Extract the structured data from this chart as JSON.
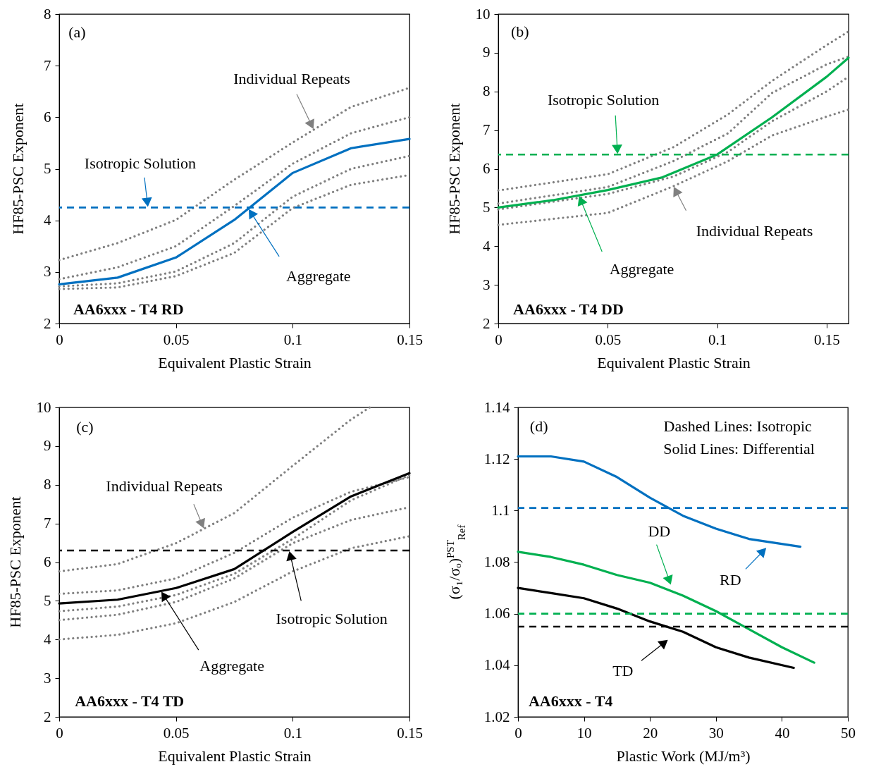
{
  "chart_data": [
    {
      "type": "line",
      "xlabel": "Equivalent Plastic Strain",
      "ylabel": "HF85-PSC Exponent",
      "x": [
        0,
        0.025,
        0.05,
        0.075,
        0.1,
        0.125,
        0.15
      ],
      "xlim": [
        0,
        0.15
      ],
      "xticks": [
        0,
        0.05,
        0.1,
        0.15
      ],
      "ylim": [
        2,
        8
      ],
      "yticks": [
        2,
        3,
        4,
        5,
        6,
        7,
        8
      ],
      "series": [
        {
          "color": "#808080",
          "line_style": "dotted",
          "values": [
            3.23,
            3.56,
            4.01,
            4.79,
            5.51,
            6.2,
            6.57
          ]
        },
        {
          "color": "#808080",
          "line_style": "dotted",
          "values": [
            2.86,
            3.09,
            3.5,
            4.28,
            5.1,
            5.69,
            6.0
          ]
        },
        {
          "color": "#808080",
          "line_style": "dotted",
          "values": [
            2.72,
            2.78,
            3.01,
            3.56,
            4.46,
            5.0,
            5.25
          ]
        },
        {
          "color": "#808080",
          "line_style": "dotted",
          "values": [
            2.67,
            2.7,
            2.92,
            3.37,
            4.24,
            4.69,
            4.88
          ]
        },
        {
          "color": "#0070c0",
          "line_style": "solid",
          "values": [
            2.76,
            2.89,
            3.28,
            4.01,
            4.92,
            5.4,
            5.58
          ]
        }
      ],
      "ref_lines": [
        {
          "axis": "y",
          "value": 4.25,
          "label": "Isotropic Solution",
          "color": "#0070c0",
          "line_style": "dashed"
        }
      ],
      "annotations": [
        "(a)",
        {
          "text": "Individual Repeats",
          "x": 0.109,
          "y": 5.76
        },
        {
          "text": "Aggregate",
          "x": 0.081,
          "y": 4.23
        },
        "AA6xxx - T4 RD"
      ]
    },
    {
      "type": "line",
      "xlabel": "Equivalent Plastic Strain",
      "ylabel": "HF85-PSC Exponent",
      "xlim": [
        0,
        0.16
      ],
      "xticks": [
        0,
        0.05,
        0.1,
        0.15
      ],
      "ylim": [
        2,
        10
      ],
      "yticks": [
        2,
        3,
        4,
        5,
        6,
        7,
        8,
        9,
        10
      ],
      "series": [
        {
          "color": "#808080",
          "line_style": "dotted",
          "x": [
            0,
            0.05,
            0.08,
            0.105,
            0.125,
            0.15,
            0.16
          ],
          "values": [
            5.44,
            5.86,
            6.56,
            7.41,
            8.27,
            9.2,
            9.55
          ]
        },
        {
          "color": "#808080",
          "line_style": "dotted",
          "x": [
            0,
            0.05,
            0.08,
            0.105,
            0.125,
            0.15,
            0.16
          ],
          "values": [
            5.1,
            5.53,
            6.2,
            6.92,
            7.96,
            8.7,
            8.9
          ]
        },
        {
          "color": "#808080",
          "line_style": "dotted",
          "x": [
            0,
            0.05,
            0.08,
            0.105,
            0.125,
            0.15,
            0.16
          ],
          "values": [
            4.95,
            5.35,
            5.8,
            6.44,
            7.23,
            8.0,
            8.38
          ]
        },
        {
          "color": "#808080",
          "line_style": "dotted",
          "x": [
            0,
            0.05,
            0.08,
            0.105,
            0.125,
            0.15,
            0.16
          ],
          "values": [
            4.55,
            4.86,
            5.55,
            6.2,
            6.86,
            7.35,
            7.53
          ]
        },
        {
          "color": "#00b050",
          "line_style": "solid",
          "x": [
            0,
            0.025,
            0.05,
            0.075,
            0.1,
            0.125,
            0.15,
            0.16
          ],
          "values": [
            5.0,
            5.19,
            5.45,
            5.78,
            6.37,
            7.33,
            8.38,
            8.87
          ]
        }
      ],
      "ref_lines": [
        {
          "axis": "y",
          "value": 6.37,
          "label": "Isotropic Solution",
          "color": "#00b050",
          "line_style": "dashed"
        }
      ],
      "annotations": [
        "(b)",
        {
          "text": "Individual Repeats",
          "x": 0.08,
          "y": 5.55
        },
        {
          "text": "Aggregate",
          "x": 0.0368,
          "y": 5.31
        },
        "AA6xxx - T4 DD"
      ]
    },
    {
      "type": "line",
      "xlabel": "Equivalent Plastic Strain",
      "ylabel": "HF85-PSC Exponent",
      "x": [
        0,
        0.025,
        0.05,
        0.075,
        0.1,
        0.125,
        0.15
      ],
      "xlim": [
        0,
        0.15
      ],
      "xticks": [
        0,
        0.05,
        0.1,
        0.15
      ],
      "ylim": [
        2,
        10
      ],
      "yticks": [
        2,
        3,
        4,
        5,
        6,
        7,
        8,
        9,
        10
      ],
      "series": [
        {
          "color": "#808080",
          "line_style": "dotted",
          "x": [
            0,
            0.025,
            0.05,
            0.075,
            0.1,
            0.125,
            0.133
          ],
          "values": [
            5.76,
            5.95,
            6.49,
            7.27,
            8.49,
            9.69,
            10
          ]
        },
        {
          "color": "#808080",
          "line_style": "dotted",
          "values": [
            5.18,
            5.27,
            5.58,
            6.24,
            7.15,
            7.82,
            8.2
          ]
        },
        {
          "color": "#808080",
          "line_style": "dotted",
          "values": [
            4.73,
            4.85,
            5.15,
            5.7,
            6.6,
            7.6,
            8.25
          ]
        },
        {
          "color": "#808080",
          "line_style": "dotted",
          "values": [
            4.5,
            4.64,
            4.97,
            5.58,
            6.49,
            7.09,
            7.42
          ]
        },
        {
          "color": "#808080",
          "line_style": "dotted",
          "values": [
            4.0,
            4.12,
            4.42,
            4.97,
            5.76,
            6.36,
            6.67
          ]
        },
        {
          "color": "#000000",
          "line_style": "solid",
          "values": [
            4.93,
            5.03,
            5.33,
            5.82,
            6.78,
            7.7,
            8.3
          ]
        }
      ],
      "ref_lines": [
        {
          "axis": "y",
          "value": 6.3,
          "label": "Isotropic Solution",
          "color": "#000000",
          "line_style": "dashed"
        }
      ],
      "annotations": [
        "(c)",
        {
          "text": "Individual Repeats",
          "x": 0.062,
          "y": 6.86
        },
        {
          "text": "Aggregate",
          "x": 0.0436,
          "y": 5.25
        },
        "AA6xxx - T4 TD"
      ]
    },
    {
      "type": "line",
      "xlabel": "Plastic Work (MJ/m³)",
      "ylabel": "(σ₁/σₒ)$^{PST}$$_{Ref}$",
      "xlim": [
        0,
        50
      ],
      "xticks": [
        0,
        10,
        20,
        30,
        40,
        50
      ],
      "ylim": [
        1.02,
        1.14
      ],
      "yticks": [
        1.02,
        1.04,
        1.06,
        1.08,
        1.1,
        1.12,
        1.14
      ],
      "series": [
        {
          "name": "RD",
          "color": "#0070c0",
          "line_style": "solid",
          "x": [
            0,
            5,
            10,
            15,
            20,
            25,
            30,
            35,
            42.8
          ],
          "values": [
            1.121,
            1.121,
            1.119,
            1.113,
            1.105,
            1.098,
            1.093,
            1.089,
            1.086
          ]
        },
        {
          "name": "DD",
          "color": "#00b050",
          "line_style": "solid",
          "x": [
            0,
            5,
            10,
            15,
            20,
            25,
            30,
            35,
            40,
            44.9
          ],
          "values": [
            1.084,
            1.082,
            1.079,
            1.075,
            1.072,
            1.067,
            1.061,
            1.054,
            1.047,
            1.041
          ]
        },
        {
          "name": "TD",
          "color": "#000000",
          "line_style": "solid",
          "x": [
            0,
            5,
            10,
            15,
            20,
            25,
            30,
            35,
            41.8
          ],
          "values": [
            1.07,
            1.068,
            1.066,
            1.062,
            1.057,
            1.053,
            1.047,
            1.043,
            1.039
          ]
        }
      ],
      "ref_lines": [
        {
          "axis": "y",
          "value": 1.101,
          "color": "#0070c0",
          "line_style": "dashed"
        },
        {
          "axis": "y",
          "value": 1.06,
          "color": "#00b050",
          "line_style": "dashed"
        },
        {
          "axis": "y",
          "value": 1.055,
          "color": "#000000",
          "line_style": "dashed"
        }
      ],
      "annotations": [
        "(d)",
        "Dashed Lines: Isotropic",
        "Solid Lines: Differential",
        "AA6xxx - T4"
      ]
    }
  ]
}
